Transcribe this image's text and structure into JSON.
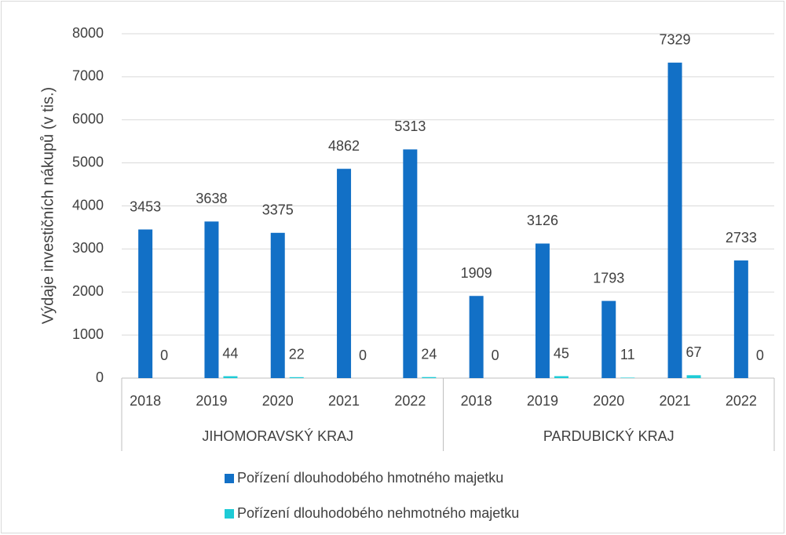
{
  "chart_data": {
    "type": "bar",
    "y_axis_label": "Výdaje investičních nákupů (v tis.)",
    "categories": [
      "2018",
      "2019",
      "2020",
      "2021",
      "2022",
      "2018",
      "2019",
      "2020",
      "2021",
      "2022"
    ],
    "category_groups": [
      "JIHOMORAVSKÝ KRAJ",
      "PARDUBICKÝ KRAJ"
    ],
    "series": [
      {
        "name": "Pořízení dlouhodobého hmotného majetku",
        "color": "#1270c6",
        "values": [
          3453,
          3638,
          3375,
          4862,
          5313,
          1909,
          3126,
          1793,
          7329,
          2733
        ]
      },
      {
        "name": "Pořízení dlouhodobého nehmotného majetku",
        "color": "#1ecbd6",
        "values": [
          0,
          44,
          22,
          0,
          24,
          0,
          45,
          11,
          67,
          0
        ]
      }
    ],
    "ylim": [
      0,
      8000
    ],
    "yticks": [
      0,
      1000,
      2000,
      3000,
      4000,
      5000,
      6000,
      7000,
      8000
    ],
    "grid": true,
    "legend": "bottom"
  }
}
